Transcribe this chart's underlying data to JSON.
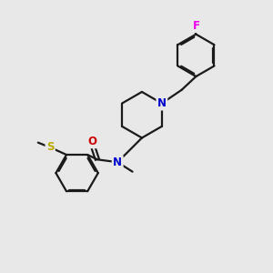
{
  "background_color": "#e8e8e8",
  "bond_color": "#1a1a1a",
  "atom_colors": {
    "N": "#0000cc",
    "O": "#cc0000",
    "S": "#bbaa00",
    "F": "#ee00ee"
  },
  "figsize": [
    3.0,
    3.0
  ],
  "dpi": 100,
  "lw": 1.6
}
